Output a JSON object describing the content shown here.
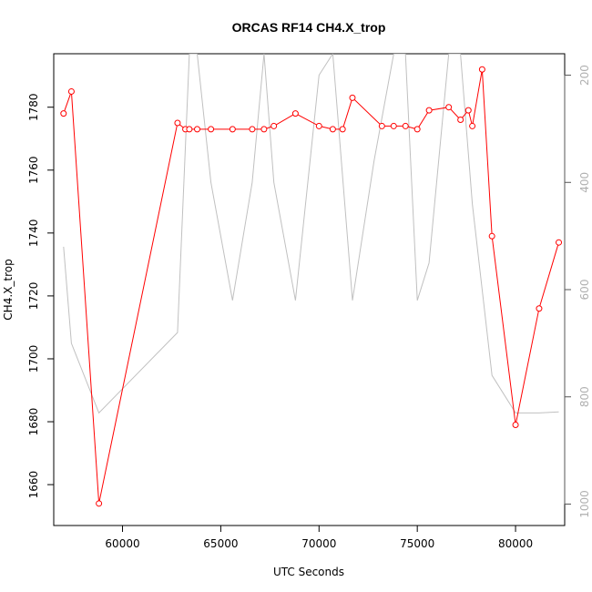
{
  "chart_data": {
    "type": "line",
    "title": "ORCAS RF14 CH4.X_trop",
    "xlabel": "UTC Seconds",
    "ylabel": "CH4.X_trop",
    "xlim": [
      56500,
      82500
    ],
    "ylim": [
      1647,
      1797
    ],
    "y2lim": [
      1040,
      160
    ],
    "x_ticks": [
      60000,
      65000,
      70000,
      75000,
      80000
    ],
    "y_ticks": [
      1660,
      1680,
      1700,
      1720,
      1740,
      1760,
      1780
    ],
    "y2_ticks": [
      200,
      400,
      600,
      800,
      1000
    ],
    "colors": {
      "primary": "#ff0000",
      "secondary": "#c0c0c0",
      "secondary_ticks": "#b0b0b0"
    },
    "series": [
      {
        "axis": "left",
        "style": "line-with-open-circles",
        "x": [
          57000,
          57400,
          58800,
          62800,
          63200,
          63400,
          63800,
          64500,
          65600,
          66600,
          67200,
          67700,
          68800,
          70000,
          70700,
          71200,
          71700,
          73200,
          73800,
          74400,
          75000,
          75600,
          76600,
          77200,
          77600,
          77800,
          78300,
          78800,
          80000,
          81200,
          82200
        ],
        "y": [
          1778,
          1785,
          1654,
          1775,
          1773,
          1773,
          1773,
          1773,
          1773,
          1773,
          1773,
          1774,
          1778,
          1774,
          1773,
          1773,
          1783,
          1774,
          1774,
          1774,
          1773,
          1779,
          1780,
          1776,
          1779,
          1774,
          1792,
          1739,
          1679,
          1716,
          1737
        ]
      },
      {
        "axis": "right",
        "style": "line",
        "x": [
          57000,
          57400,
          58800,
          62800,
          63400,
          63800,
          64500,
          65600,
          66600,
          67200,
          67700,
          68800,
          70000,
          70700,
          71700,
          72800,
          73800,
          74400,
          75000,
          75600,
          76600,
          77200,
          77800,
          78300,
          78800,
          80000,
          81200,
          82200
        ],
        "y": [
          520,
          700,
          830,
          680,
          160,
          160,
          400,
          620,
          400,
          160,
          400,
          620,
          200,
          160,
          620,
          360,
          160,
          160,
          620,
          550,
          160,
          160,
          440,
          600,
          760,
          830,
          830,
          828
        ]
      }
    ]
  }
}
